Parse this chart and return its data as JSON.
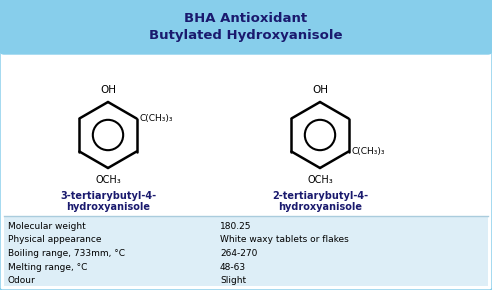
{
  "title_line1": "BHA Antioxidant",
  "title_line2": "Butylated Hydroxyanisole",
  "title_bg": "#87CEEB",
  "title_color": "#1a1a6e",
  "bg_color": "#ffffff",
  "border_color": "#87CEEB",
  "mol1_name_line1": "3-tertiarybutyl-4-",
  "mol1_name_line2": "hydroxyanisole",
  "mol2_name_line1": "2-tertiarybutyl-4-",
  "mol2_name_line2": "hydroxyanisole",
  "properties": [
    [
      "Molecular weight",
      "180.25"
    ],
    [
      "Physical appearance",
      "White waxy tablets or flakes"
    ],
    [
      "Boiling range, 733mm, °C",
      "264-270"
    ],
    [
      "Melting range, °C",
      "48-63"
    ],
    [
      "Odour",
      "Slight"
    ]
  ],
  "text_color": "#000000",
  "label_color": "#1a1a6e",
  "table_bg": "#ddeeff"
}
